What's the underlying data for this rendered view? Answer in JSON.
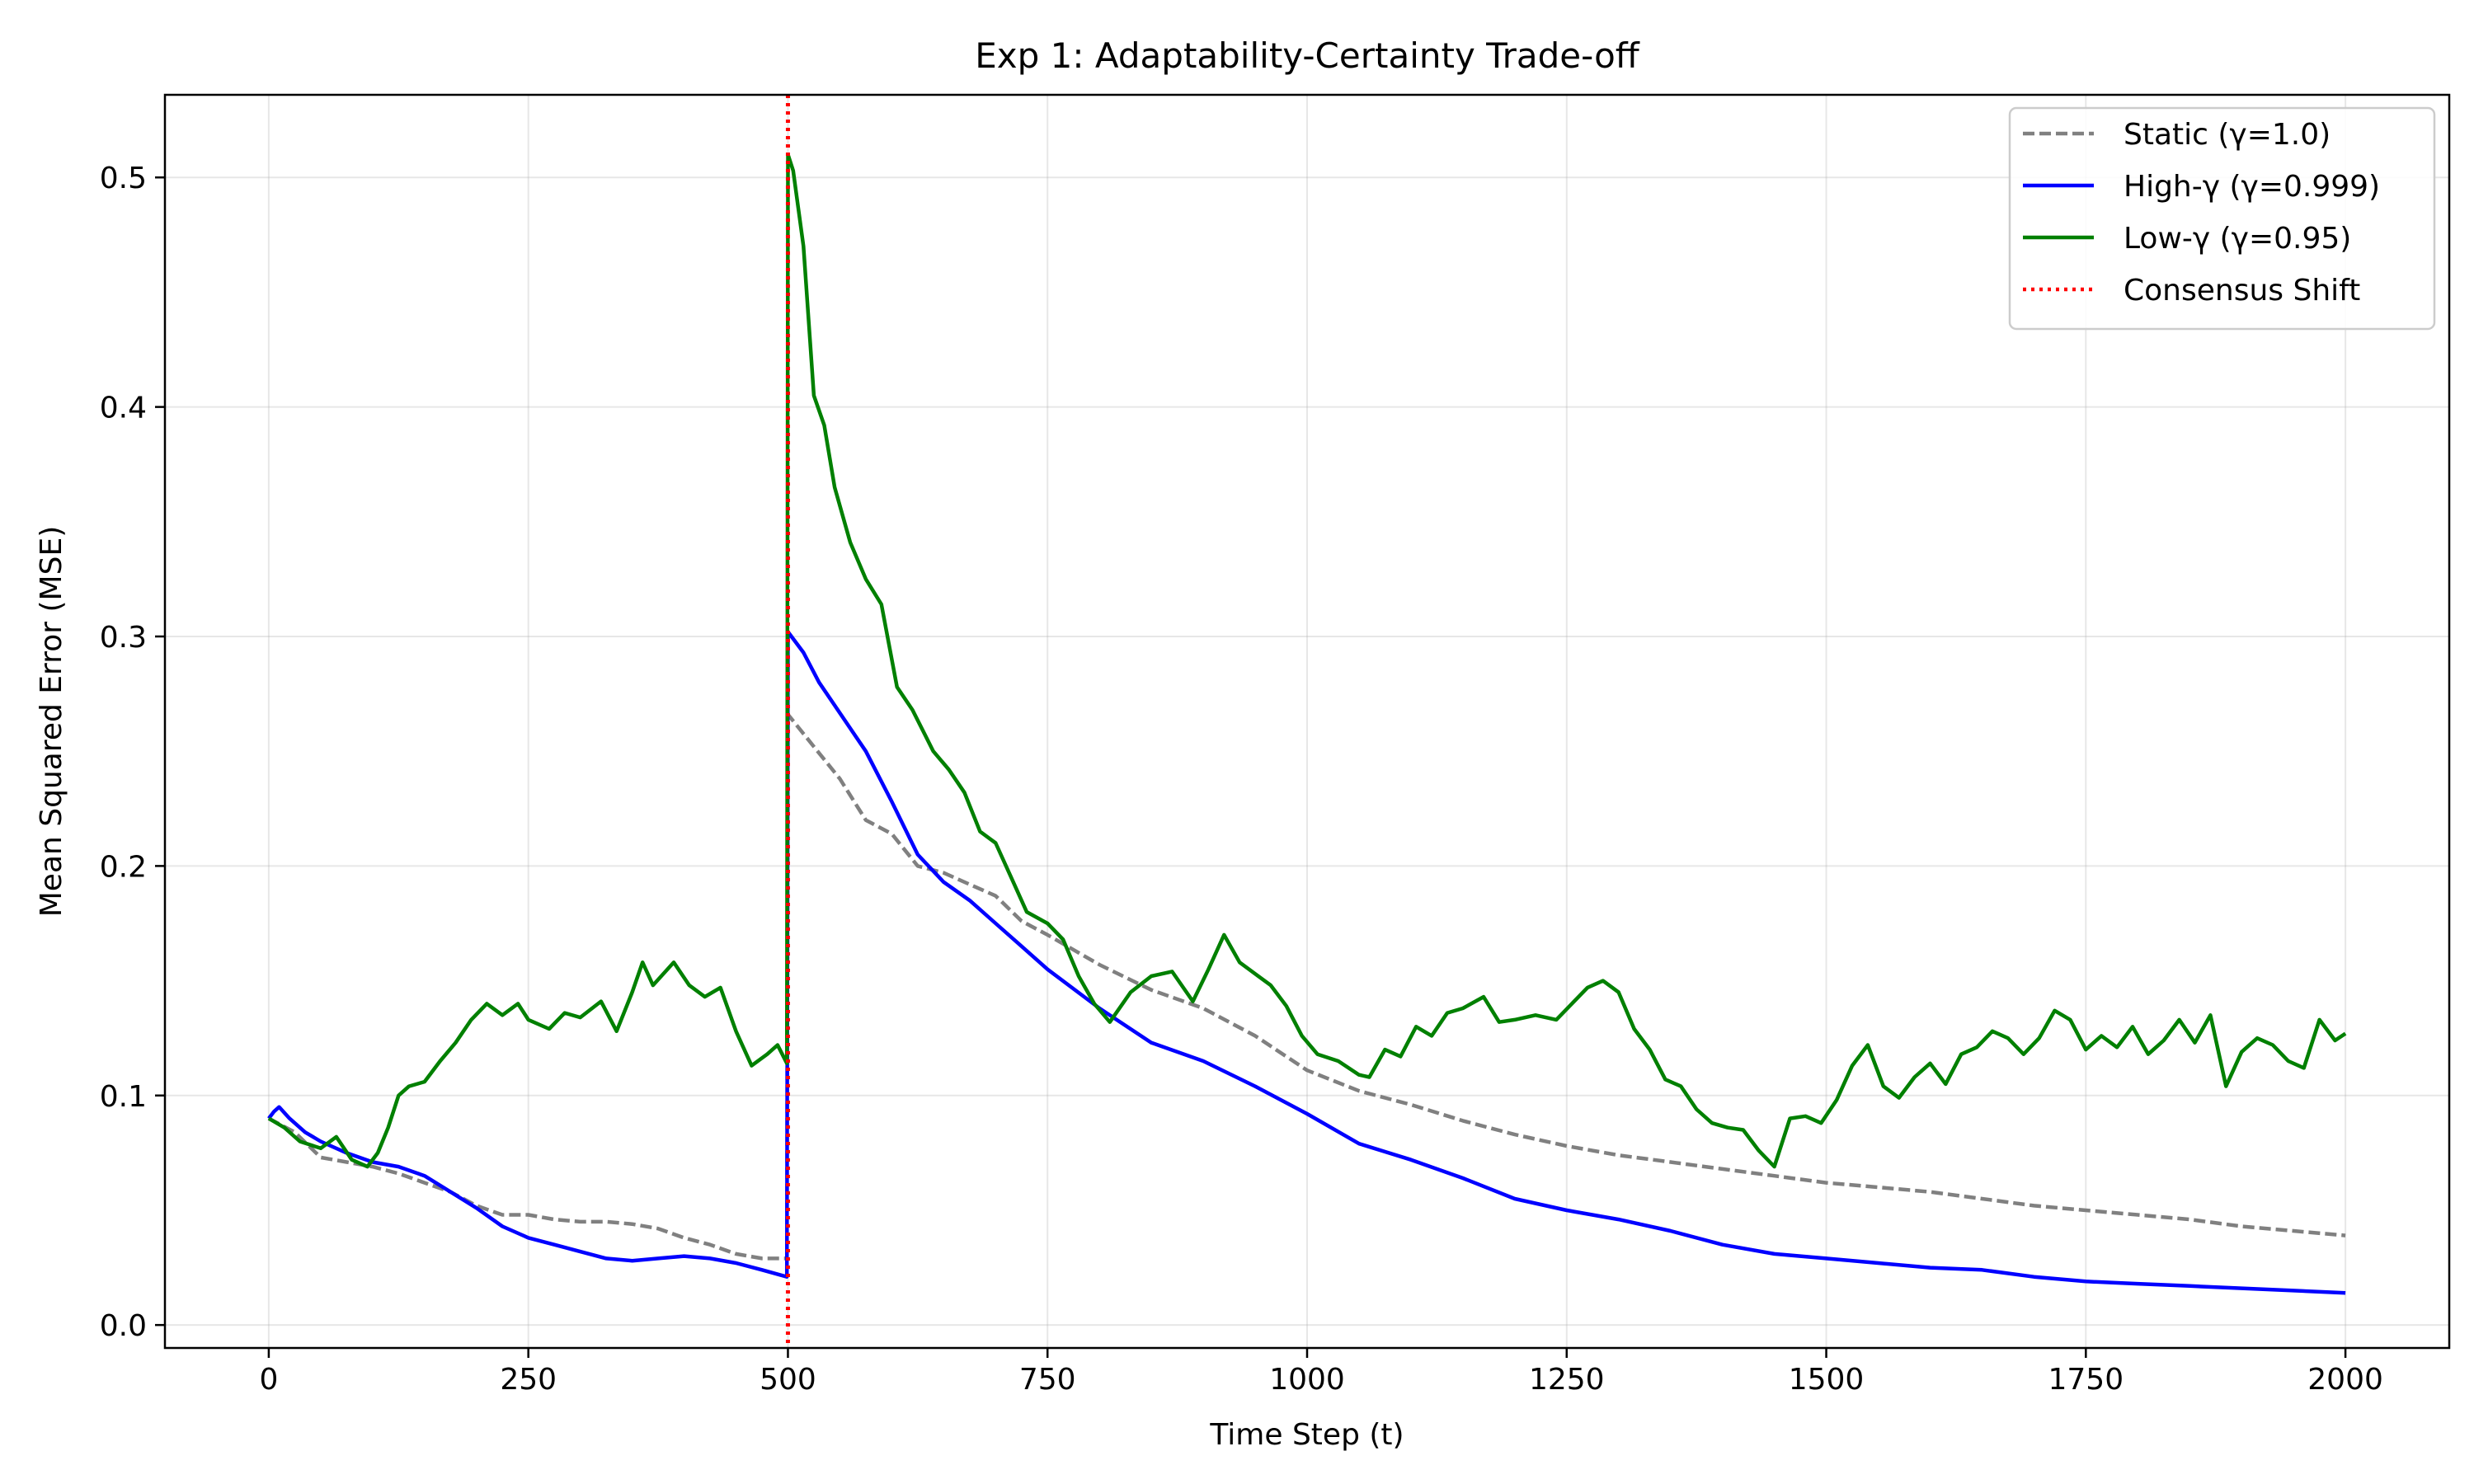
{
  "chart_data": {
    "type": "line",
    "title": "Exp 1: Adaptability-Certainty Trade-off",
    "xlabel": "Time Step (t)",
    "ylabel": "Mean Squared Error (MSE)",
    "xlim": [
      -100,
      2100
    ],
    "ylim": [
      -0.01,
      0.536
    ],
    "xticks": [
      0,
      250,
      500,
      750,
      1000,
      1250,
      1500,
      1750,
      2000
    ],
    "yticks": [
      0.0,
      0.1,
      0.2,
      0.3,
      0.4,
      0.5
    ],
    "xtick_labels": [
      "0",
      "250",
      "500",
      "750",
      "1000",
      "1250",
      "1500",
      "1750",
      "2000"
    ],
    "ytick_labels": [
      "0.0",
      "0.1",
      "0.2",
      "0.3",
      "0.4",
      "0.5"
    ],
    "grid": true,
    "legend_position": "upper right",
    "series": [
      {
        "name": "Static (γ=1.0)",
        "color": "#808080",
        "style": "dashed",
        "points": [
          [
            0,
            0.09
          ],
          [
            25,
            0.084
          ],
          [
            50,
            0.073
          ],
          [
            75,
            0.071
          ],
          [
            100,
            0.069
          ],
          [
            125,
            0.066
          ],
          [
            150,
            0.062
          ],
          [
            175,
            0.058
          ],
          [
            200,
            0.052
          ],
          [
            225,
            0.048
          ],
          [
            250,
            0.048
          ],
          [
            275,
            0.046
          ],
          [
            300,
            0.045
          ],
          [
            325,
            0.045
          ],
          [
            350,
            0.044
          ],
          [
            375,
            0.042
          ],
          [
            400,
            0.038
          ],
          [
            425,
            0.035
          ],
          [
            450,
            0.031
          ],
          [
            475,
            0.029
          ],
          [
            499,
            0.029
          ],
          [
            500,
            0.266
          ],
          [
            525,
            0.252
          ],
          [
            550,
            0.238
          ],
          [
            575,
            0.22
          ],
          [
            600,
            0.214
          ],
          [
            625,
            0.2
          ],
          [
            650,
            0.197
          ],
          [
            675,
            0.192
          ],
          [
            700,
            0.187
          ],
          [
            725,
            0.176
          ],
          [
            750,
            0.17
          ],
          [
            800,
            0.157
          ],
          [
            850,
            0.146
          ],
          [
            900,
            0.138
          ],
          [
            950,
            0.126
          ],
          [
            1000,
            0.111
          ],
          [
            1050,
            0.102
          ],
          [
            1100,
            0.096
          ],
          [
            1150,
            0.089
          ],
          [
            1200,
            0.083
          ],
          [
            1250,
            0.078
          ],
          [
            1300,
            0.074
          ],
          [
            1350,
            0.071
          ],
          [
            1400,
            0.068
          ],
          [
            1450,
            0.065
          ],
          [
            1500,
            0.062
          ],
          [
            1550,
            0.06
          ],
          [
            1600,
            0.058
          ],
          [
            1650,
            0.055
          ],
          [
            1700,
            0.052
          ],
          [
            1750,
            0.05
          ],
          [
            1800,
            0.048
          ],
          [
            1850,
            0.046
          ],
          [
            1900,
            0.043
          ],
          [
            1950,
            0.041
          ],
          [
            2000,
            0.039
          ]
        ]
      },
      {
        "name": "High-γ (γ=0.999)",
        "color": "#0000ff",
        "style": "solid",
        "points": [
          [
            0,
            0.09
          ],
          [
            5,
            0.093
          ],
          [
            10,
            0.095
          ],
          [
            20,
            0.09
          ],
          [
            35,
            0.084
          ],
          [
            50,
            0.08
          ],
          [
            75,
            0.075
          ],
          [
            100,
            0.071
          ],
          [
            125,
            0.069
          ],
          [
            150,
            0.065
          ],
          [
            175,
            0.058
          ],
          [
            200,
            0.051
          ],
          [
            225,
            0.043
          ],
          [
            250,
            0.038
          ],
          [
            275,
            0.035
          ],
          [
            300,
            0.032
          ],
          [
            325,
            0.029
          ],
          [
            350,
            0.028
          ],
          [
            375,
            0.029
          ],
          [
            400,
            0.03
          ],
          [
            425,
            0.029
          ],
          [
            450,
            0.027
          ],
          [
            475,
            0.024
          ],
          [
            499,
            0.021
          ],
          [
            500,
            0.302
          ],
          [
            515,
            0.293
          ],
          [
            530,
            0.28
          ],
          [
            545,
            0.27
          ],
          [
            560,
            0.26
          ],
          [
            575,
            0.25
          ],
          [
            600,
            0.228
          ],
          [
            625,
            0.205
          ],
          [
            650,
            0.193
          ],
          [
            675,
            0.185
          ],
          [
            700,
            0.175
          ],
          [
            725,
            0.165
          ],
          [
            750,
            0.155
          ],
          [
            800,
            0.138
          ],
          [
            850,
            0.123
          ],
          [
            900,
            0.115
          ],
          [
            950,
            0.104
          ],
          [
            1000,
            0.092
          ],
          [
            1050,
            0.079
          ],
          [
            1100,
            0.072
          ],
          [
            1150,
            0.064
          ],
          [
            1200,
            0.055
          ],
          [
            1250,
            0.05
          ],
          [
            1300,
            0.046
          ],
          [
            1350,
            0.041
          ],
          [
            1400,
            0.035
          ],
          [
            1450,
            0.031
          ],
          [
            1500,
            0.029
          ],
          [
            1550,
            0.027
          ],
          [
            1600,
            0.025
          ],
          [
            1650,
            0.024
          ],
          [
            1700,
            0.021
          ],
          [
            1750,
            0.019
          ],
          [
            1800,
            0.018
          ],
          [
            1850,
            0.017
          ],
          [
            1900,
            0.016
          ],
          [
            1950,
            0.015
          ],
          [
            2000,
            0.014
          ]
        ]
      },
      {
        "name": "Low-γ (γ=0.95)",
        "color": "#008000",
        "style": "solid",
        "points": [
          [
            0,
            0.09
          ],
          [
            15,
            0.086
          ],
          [
            30,
            0.08
          ],
          [
            50,
            0.077
          ],
          [
            65,
            0.082
          ],
          [
            80,
            0.072
          ],
          [
            95,
            0.069
          ],
          [
            105,
            0.075
          ],
          [
            115,
            0.086
          ],
          [
            125,
            0.1
          ],
          [
            135,
            0.104
          ],
          [
            150,
            0.106
          ],
          [
            165,
            0.115
          ],
          [
            180,
            0.123
          ],
          [
            195,
            0.133
          ],
          [
            210,
            0.14
          ],
          [
            225,
            0.135
          ],
          [
            240,
            0.14
          ],
          [
            250,
            0.133
          ],
          [
            270,
            0.129
          ],
          [
            285,
            0.136
          ],
          [
            300,
            0.134
          ],
          [
            320,
            0.141
          ],
          [
            335,
            0.128
          ],
          [
            350,
            0.145
          ],
          [
            360,
            0.158
          ],
          [
            370,
            0.148
          ],
          [
            390,
            0.158
          ],
          [
            405,
            0.148
          ],
          [
            420,
            0.143
          ],
          [
            435,
            0.147
          ],
          [
            450,
            0.128
          ],
          [
            465,
            0.113
          ],
          [
            480,
            0.118
          ],
          [
            490,
            0.122
          ],
          [
            499,
            0.114
          ],
          [
            500,
            0.51
          ],
          [
            505,
            0.503
          ],
          [
            515,
            0.47
          ],
          [
            525,
            0.405
          ],
          [
            535,
            0.392
          ],
          [
            545,
            0.365
          ],
          [
            560,
            0.341
          ],
          [
            575,
            0.325
          ],
          [
            590,
            0.314
          ],
          [
            605,
            0.278
          ],
          [
            620,
            0.268
          ],
          [
            640,
            0.25
          ],
          [
            655,
            0.242
          ],
          [
            670,
            0.232
          ],
          [
            685,
            0.215
          ],
          [
            700,
            0.21
          ],
          [
            715,
            0.195
          ],
          [
            730,
            0.18
          ],
          [
            750,
            0.175
          ],
          [
            765,
            0.168
          ],
          [
            780,
            0.152
          ],
          [
            795,
            0.14
          ],
          [
            810,
            0.132
          ],
          [
            830,
            0.145
          ],
          [
            850,
            0.152
          ],
          [
            870,
            0.154
          ],
          [
            890,
            0.141
          ],
          [
            905,
            0.155
          ],
          [
            920,
            0.17
          ],
          [
            935,
            0.158
          ],
          [
            950,
            0.153
          ],
          [
            965,
            0.148
          ],
          [
            980,
            0.139
          ],
          [
            995,
            0.126
          ],
          [
            1010,
            0.118
          ],
          [
            1030,
            0.115
          ],
          [
            1050,
            0.109
          ],
          [
            1060,
            0.108
          ],
          [
            1075,
            0.12
          ],
          [
            1090,
            0.117
          ],
          [
            1105,
            0.13
          ],
          [
            1120,
            0.126
          ],
          [
            1135,
            0.136
          ],
          [
            1150,
            0.138
          ],
          [
            1170,
            0.143
          ],
          [
            1185,
            0.132
          ],
          [
            1200,
            0.133
          ],
          [
            1220,
            0.135
          ],
          [
            1240,
            0.133
          ],
          [
            1255,
            0.14
          ],
          [
            1270,
            0.147
          ],
          [
            1285,
            0.15
          ],
          [
            1300,
            0.145
          ],
          [
            1315,
            0.129
          ],
          [
            1330,
            0.12
          ],
          [
            1345,
            0.107
          ],
          [
            1360,
            0.104
          ],
          [
            1375,
            0.094
          ],
          [
            1390,
            0.088
          ],
          [
            1405,
            0.086
          ],
          [
            1420,
            0.085
          ],
          [
            1435,
            0.076
          ],
          [
            1450,
            0.069
          ],
          [
            1465,
            0.09
          ],
          [
            1480,
            0.091
          ],
          [
            1495,
            0.088
          ],
          [
            1510,
            0.098
          ],
          [
            1525,
            0.113
          ],
          [
            1540,
            0.122
          ],
          [
            1555,
            0.104
          ],
          [
            1570,
            0.099
          ],
          [
            1585,
            0.108
          ],
          [
            1600,
            0.114
          ],
          [
            1615,
            0.105
          ],
          [
            1630,
            0.118
          ],
          [
            1645,
            0.121
          ],
          [
            1660,
            0.128
          ],
          [
            1675,
            0.125
          ],
          [
            1690,
            0.118
          ],
          [
            1705,
            0.125
          ],
          [
            1720,
            0.137
          ],
          [
            1735,
            0.133
          ],
          [
            1750,
            0.12
          ],
          [
            1765,
            0.126
          ],
          [
            1780,
            0.121
          ],
          [
            1795,
            0.13
          ],
          [
            1810,
            0.118
          ],
          [
            1825,
            0.124
          ],
          [
            1840,
            0.133
          ],
          [
            1855,
            0.123
          ],
          [
            1870,
            0.135
          ],
          [
            1885,
            0.104
          ],
          [
            1900,
            0.119
          ],
          [
            1915,
            0.125
          ],
          [
            1930,
            0.122
          ],
          [
            1945,
            0.115
          ],
          [
            1960,
            0.112
          ],
          [
            1975,
            0.133
          ],
          [
            1990,
            0.124
          ],
          [
            2000,
            0.127
          ]
        ]
      },
      {
        "name": "Consensus Shift",
        "color": "#ff0000",
        "style": "dotted",
        "vline_x": 500
      }
    ]
  }
}
